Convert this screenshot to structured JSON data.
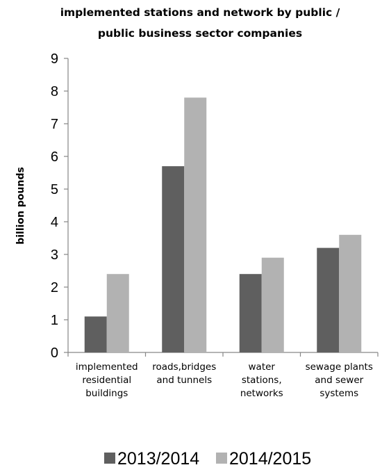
{
  "chart_data": {
    "type": "bar",
    "title": "implemented stations and network by public / public business sector companies",
    "title_lines": [
      "implemented stations and network by public /",
      "public business sector companies"
    ],
    "ylabel": "billion pounds",
    "xlabel": "",
    "ylim": [
      0,
      9
    ],
    "yticks": [
      0,
      1,
      2,
      3,
      4,
      5,
      6,
      7,
      8,
      9
    ],
    "grid": false,
    "legend_position": "bottom",
    "categories": [
      "implemented residential buildings",
      "roads,bridges and tunnels",
      "water stations, networks",
      "sewage plants and sewer systems"
    ],
    "category_lines": [
      [
        "implemented",
        "residential",
        "buildings"
      ],
      [
        "roads,bridges",
        "and tunnels"
      ],
      [
        "water",
        "stations,",
        "networks"
      ],
      [
        "sewage plants",
        "and sewer",
        "systems"
      ]
    ],
    "series": [
      {
        "name": "2013/2014",
        "color": "#5f5f5f",
        "values": [
          1.1,
          5.7,
          2.4,
          3.2
        ]
      },
      {
        "name": "2014/2015",
        "color": "#b2b2b2",
        "values": [
          2.4,
          7.8,
          2.9,
          3.6
        ]
      }
    ]
  }
}
